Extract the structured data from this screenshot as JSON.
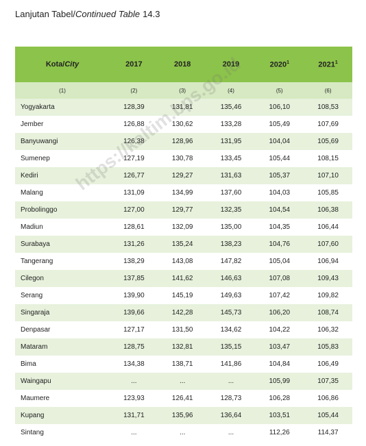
{
  "caption": {
    "prefix": "Lanjutan Tabel/",
    "italic": "Continued Table",
    "suffix": "14.3"
  },
  "watermark": "https://kaltim.bps.go.id",
  "table": {
    "header": [
      {
        "text": "Kota/",
        "italic": "City"
      },
      {
        "text": "2017"
      },
      {
        "text": "2018"
      },
      {
        "text": "2019"
      },
      {
        "text": "2020",
        "sup": "1"
      },
      {
        "text": "2021",
        "sup": "1"
      }
    ],
    "column_numbers": [
      "(1)",
      "(2)",
      "(3)",
      "(4)",
      "(5)",
      "(6)"
    ],
    "rows": [
      [
        "Yogyakarta",
        "128,39",
        "131,81",
        "135,46",
        "106,10",
        "108,53"
      ],
      [
        "Jember",
        "126,88",
        "130,62",
        "133,28",
        "105,49",
        "107,69"
      ],
      [
        "Banyuwangi",
        "126,38",
        "128,96",
        "131,95",
        "104,04",
        "105,69"
      ],
      [
        "Sumenep",
        "127,19",
        "130,78",
        "133,45",
        "105,44",
        "108,15"
      ],
      [
        "Kediri",
        "126,77",
        "129,27",
        "131,63",
        "105,37",
        "107,10"
      ],
      [
        "Malang",
        "131,09",
        "134,99",
        "137,60",
        "104,03",
        "105,85"
      ],
      [
        "Probolinggo",
        "127,00",
        "129,77",
        "132,35",
        "104,54",
        "106,38"
      ],
      [
        "Madiun",
        "128,61",
        "132,09",
        "135,00",
        "104,35",
        "106,44"
      ],
      [
        "Surabaya",
        "131,26",
        "135,24",
        "138,23",
        "104,76",
        "107,60"
      ],
      [
        "Tangerang",
        "138,29",
        "143,08",
        "147,82",
        "105,04",
        "106,94"
      ],
      [
        "Cilegon",
        "137,85",
        "141,62",
        "146,63",
        "107,08",
        "109,43"
      ],
      [
        "Serang",
        "139,90",
        "145,19",
        "149,63",
        "107,42",
        "109,82"
      ],
      [
        "Singaraja",
        "139,66",
        "142,28",
        "145,73",
        "106,20",
        "108,74"
      ],
      [
        "Denpasar",
        "127,17",
        "131,50",
        "134,62",
        "104,22",
        "106,32"
      ],
      [
        "Mataram",
        "128,75",
        "132,81",
        "135,15",
        "103,47",
        "105,83"
      ],
      [
        "Bima",
        "134,38",
        "138,71",
        "141,86",
        "104,84",
        "106,49"
      ],
      [
        "Waingapu",
        "...",
        "...",
        "...",
        "105,99",
        "107,35"
      ],
      [
        "Maumere",
        "123,93",
        "126,41",
        "128,73",
        "106,28",
        "106,86"
      ],
      [
        "Kupang",
        "131,71",
        "135,96",
        "136,64",
        "103,51",
        "105,44"
      ],
      [
        "Sintang",
        "...",
        "...",
        "...",
        "112,26",
        "114,37"
      ]
    ]
  }
}
